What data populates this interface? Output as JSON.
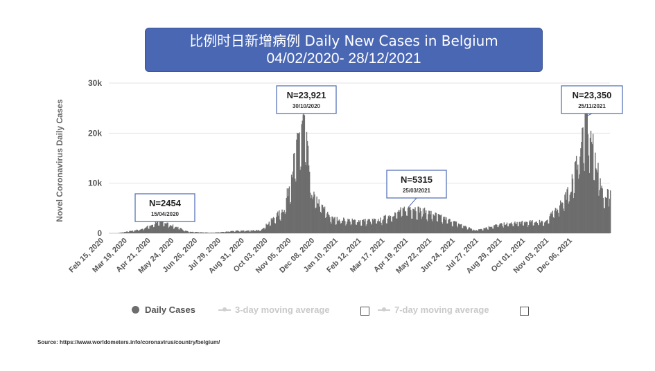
{
  "title": {
    "line1": "比例时日新增病例 Daily New Cases in Belgium",
    "line2": "04/02/2020- 28/12/2021"
  },
  "source": "Source: https://www.worldometers.info/coronavirus/country/belgium/",
  "legend": {
    "daily_cases": "Daily Cases",
    "ma3": "3-day moving average",
    "ma7": "7-day moving average"
  },
  "colors": {
    "title_bg": "#4a67b3",
    "bars": "#6d6d6d",
    "grid": "#e3e3e3",
    "annotation_border": "#4a67b3",
    "legend_muted": "#c9c9c9"
  },
  "chart_data": {
    "type": "bar",
    "title": "",
    "ylabel": "Novel Coronavirus Daily Cases",
    "xlabel": "",
    "ylim": [
      0,
      30000
    ],
    "yticks": [
      0,
      10000,
      20000,
      30000
    ],
    "ytick_labels": [
      "0",
      "10k",
      "20k",
      "30k"
    ],
    "grid": true,
    "legend_position": "bottom",
    "x_tick_labels": [
      "Feb 15, 2020",
      "Mar 19, 2020",
      "Apr 21, 2020",
      "May 24, 2020",
      "Jun 26, 2020",
      "Jul 29, 2020",
      "Aug 31, 2020",
      "Oct 03, 2020",
      "Nov 05, 2020",
      "Dec 08, 2020",
      "Jan 10, 2021",
      "Feb 12, 2021",
      "Mar 17, 2021",
      "Apr 19, 2021",
      "May 22, 2021",
      "Jun 24, 2021",
      "Jul 27, 2021",
      "Aug 29, 2021",
      "Oct 01, 2021",
      "Nov 03, 2021",
      "Dec 06, 2021"
    ],
    "series": [
      {
        "name": "Daily Cases",
        "dates": [
          "2020-02-15",
          "2020-03-19",
          "2020-04-15",
          "2020-05-24",
          "2020-06-26",
          "2020-07-29",
          "2020-08-31",
          "2020-10-03",
          "2020-10-30",
          "2020-11-10",
          "2020-12-08",
          "2021-01-10",
          "2021-02-12",
          "2021-03-25",
          "2021-04-19",
          "2021-05-22",
          "2021-06-24",
          "2021-07-27",
          "2021-08-29",
          "2021-10-01",
          "2021-11-03",
          "2021-11-25",
          "2021-12-06",
          "2021-12-20",
          "2021-12-28"
        ],
        "values": [
          0,
          800,
          2454,
          300,
          100,
          500,
          600,
          5000,
          23921,
          8000,
          3000,
          2500,
          2700,
          5315,
          4300,
          2500,
          600,
          1800,
          2200,
          2500,
          9000,
          23350,
          16000,
          7000,
          10000
        ]
      },
      {
        "name": "3-day moving average",
        "values": []
      },
      {
        "name": "7-day moving average",
        "values": []
      }
    ],
    "annotations": [
      {
        "text": "N=2454",
        "date_label": "15/04/2020",
        "date": "2020-04-15",
        "value": 2454
      },
      {
        "text": "N=23,921",
        "date_label": "30/10/2020",
        "date": "2020-10-30",
        "value": 23921
      },
      {
        "text": "N=5315",
        "date_label": "25/03/2021",
        "date": "2021-03-25",
        "value": 5315
      },
      {
        "text": "N=23,350",
        "date_label": "25/11/2021",
        "date": "2021-11-25",
        "value": 23350
      }
    ]
  }
}
